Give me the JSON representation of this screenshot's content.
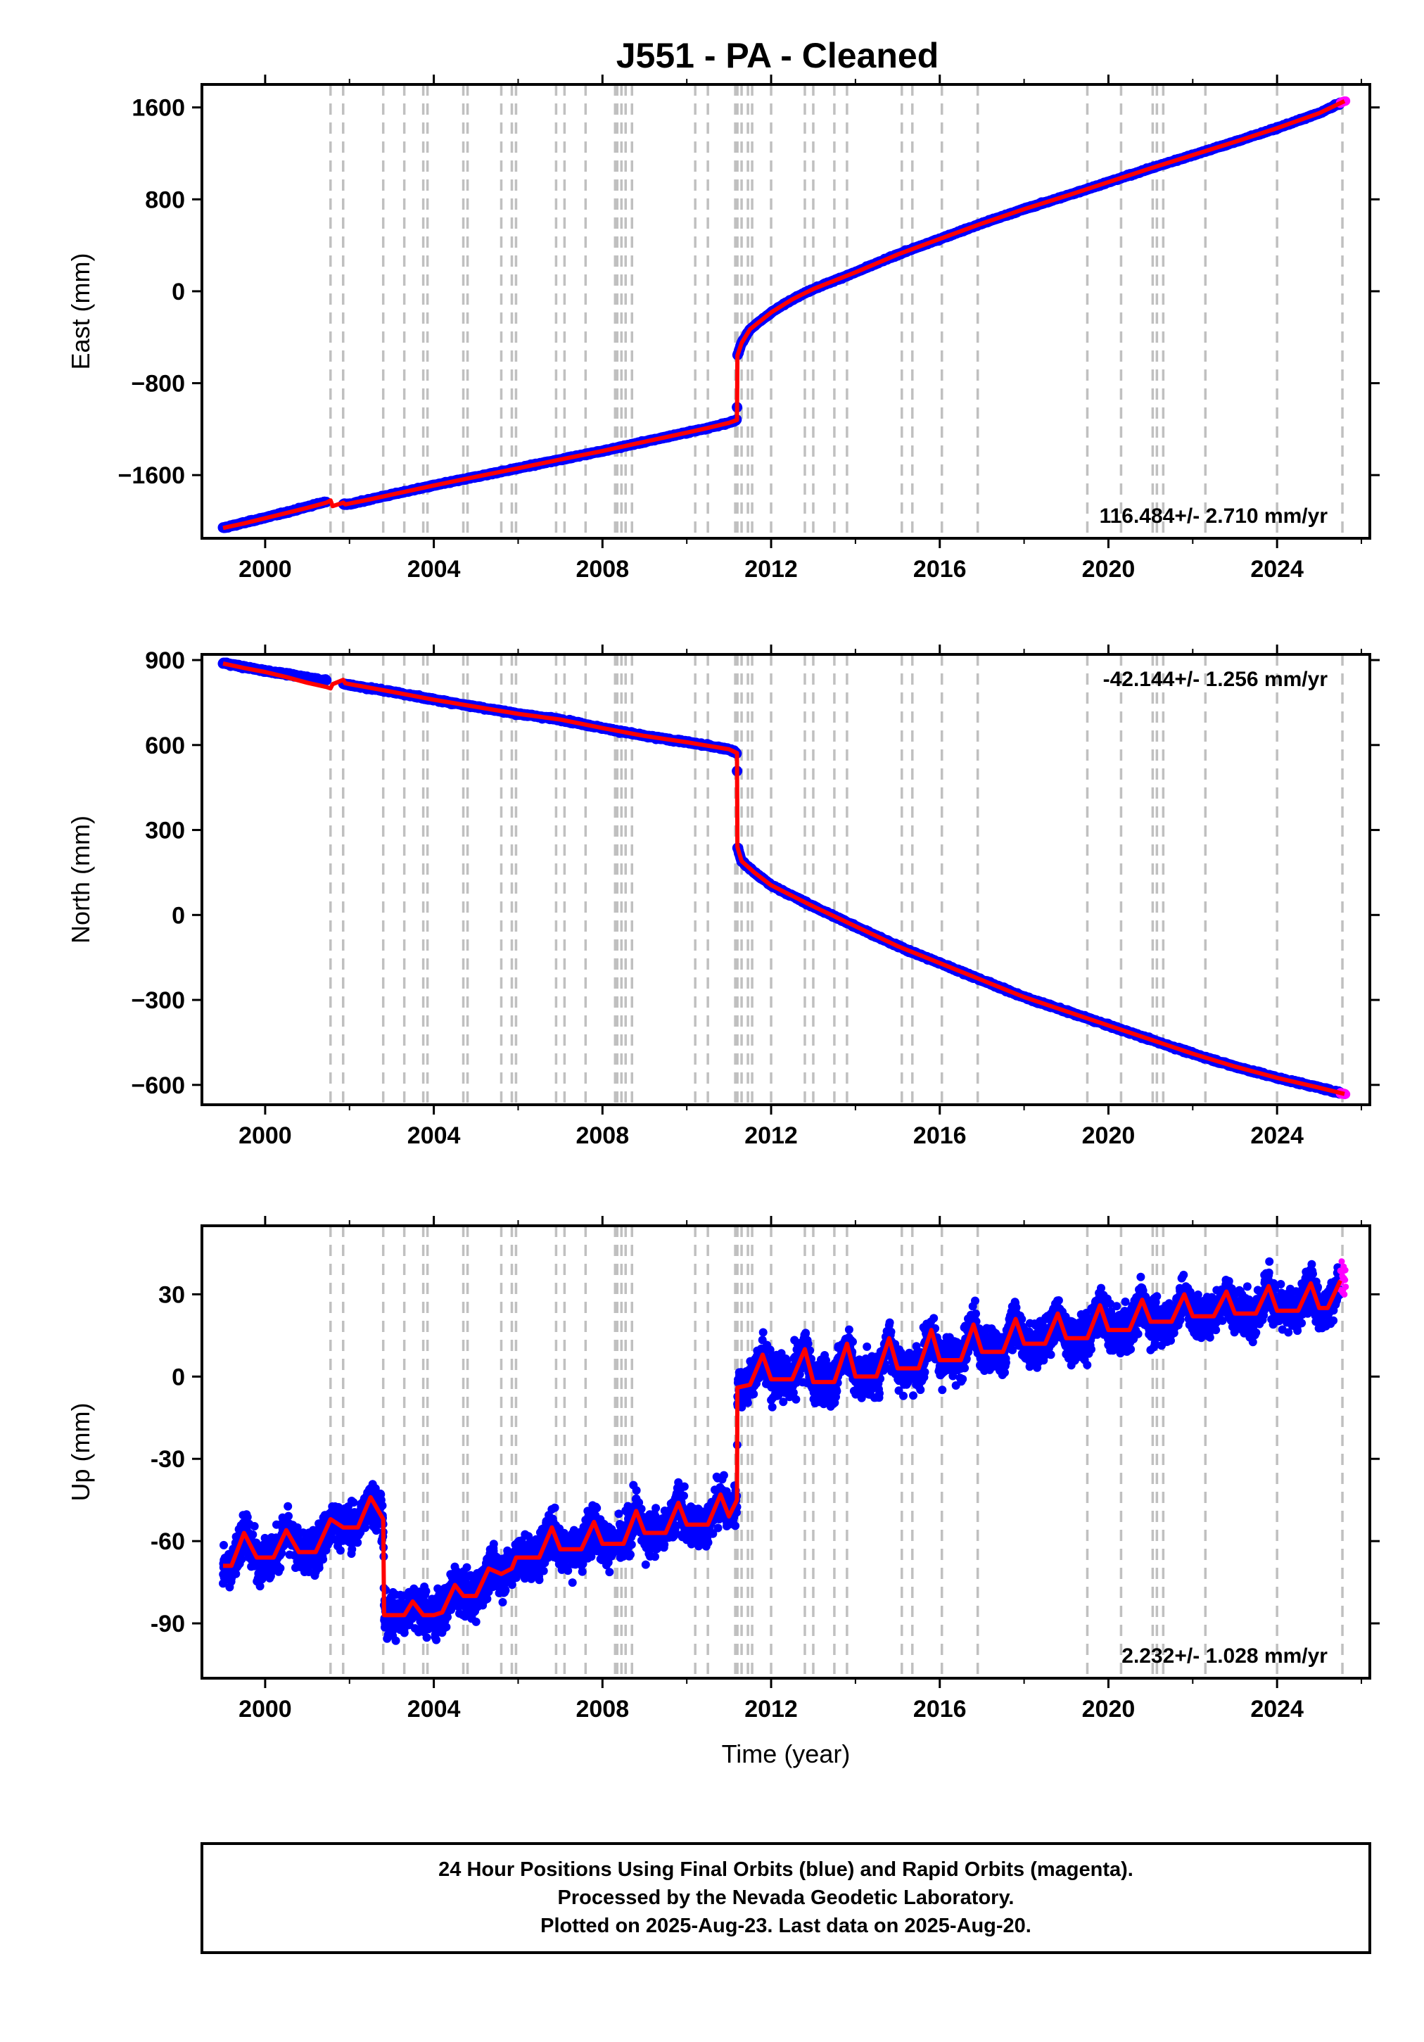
{
  "title": "J551  - PA - Cleaned",
  "footer": {
    "lines": [
      "24 Hour Positions Using Final Orbits (blue) and Rapid Orbits (magenta).",
      "Processed by the Nevada Geodetic Laboratory.",
      "Plotted on 2025-Aug-23. Last data on 2025-Aug-20."
    ]
  },
  "colors": {
    "final_orbits": "#0000ff",
    "rapid_orbits": "#ff00ff",
    "model": "#ff0000",
    "event_lines": "#c0c0c0",
    "frame": "#000000"
  },
  "event_lines": [
    2001.55,
    2001.85,
    2002.8,
    2003.3,
    2003.75,
    2003.85,
    2004.7,
    2004.8,
    2005.6,
    2005.85,
    2005.95,
    2006.9,
    2007.1,
    2007.6,
    2008.3,
    2008.35,
    2008.45,
    2008.55,
    2008.7,
    2010.2,
    2010.5,
    2011.15,
    2011.2,
    2011.3,
    2011.45,
    2011.55,
    2012.0,
    2012.8,
    2013.0,
    2013.5,
    2013.8,
    2015.1,
    2015.35,
    2016.05,
    2016.9,
    2019.5,
    2020.3,
    2021.05,
    2021.15,
    2021.3,
    2022.3,
    2024.0,
    2025.55
  ],
  "chart_data": [
    {
      "type": "scatter",
      "component": "east",
      "ylabel": "East (mm)",
      "xlabel": "",
      "xlim": [
        1998.5,
        2026.2
      ],
      "ylim": [
        -2150,
        1800
      ],
      "xticks": [
        2000,
        2004,
        2008,
        2012,
        2016,
        2020,
        2024
      ],
      "xtick_labels": [
        "2000",
        "2004",
        "2008",
        "2012",
        "2016",
        "2020",
        "2024"
      ],
      "yticks": [
        -1600,
        -800,
        0,
        800,
        1600
      ],
      "ytick_labels": [
        "−1600",
        "−800",
        "0",
        "800",
        "1600"
      ],
      "rate_label": "116.484+/- 2.710 mm/yr",
      "rate_position": "bottom-right",
      "grid": false,
      "series": [
        {
          "role": "final-orbits",
          "x": [
            1999.0,
            1999.5,
            2000.0,
            2000.5,
            2001.0,
            2001.4,
            2002.0,
            2002.5,
            2003.0,
            2004.0,
            2005.0,
            2006.0,
            2007.0,
            2008.0,
            2009.0,
            2010.0,
            2010.5,
            2011.0,
            2011.19,
            2011.2,
            2011.3,
            2011.5,
            2012.0,
            2012.5,
            2013.0,
            2014.0,
            2015.0,
            2016.0,
            2017.0,
            2018.0,
            2019.0,
            2020.0,
            2021.0,
            2022.0,
            2023.0,
            2024.0,
            2025.0,
            2025.6
          ],
          "y": [
            -2060,
            -2015,
            -1970,
            -1925,
            -1875,
            -1835,
            -1855,
            -1810,
            -1770,
            -1690,
            -1615,
            -1540,
            -1465,
            -1390,
            -1310,
            -1230,
            -1190,
            -1145,
            -1120,
            -560,
            -450,
            -330,
            -185,
            -70,
            20,
            165,
            320,
            455,
            590,
            715,
            830,
            950,
            1070,
            1185,
            1300,
            1420,
            1550,
            1655
          ]
        },
        {
          "role": "model",
          "x": [
            1999.0,
            1999.5,
            2000.0,
            2000.5,
            2001.0,
            2001.45,
            2001.55,
            2001.6,
            2001.85,
            2001.9,
            2002.5,
            2003.0,
            2004.0,
            2005.0,
            2006.0,
            2007.0,
            2008.0,
            2009.0,
            2010.0,
            2010.5,
            2011.0,
            2011.19,
            2011.2,
            2011.3,
            2011.5,
            2012.0,
            2012.5,
            2013.0,
            2014.0,
            2015.0,
            2016.0,
            2017.0,
            2018.0,
            2019.0,
            2020.0,
            2021.0,
            2022.0,
            2023.0,
            2024.0,
            2025.0,
            2025.6
          ],
          "y": [
            -2060,
            -2020,
            -1975,
            -1930,
            -1885,
            -1840,
            -1820,
            -1870,
            -1840,
            -1855,
            -1810,
            -1770,
            -1690,
            -1615,
            -1540,
            -1465,
            -1390,
            -1310,
            -1230,
            -1190,
            -1145,
            -1120,
            -560,
            -450,
            -330,
            -185,
            -70,
            20,
            165,
            320,
            455,
            590,
            715,
            830,
            950,
            1070,
            1185,
            1300,
            1420,
            1550,
            1655
          ]
        }
      ]
    },
    {
      "type": "scatter",
      "component": "north",
      "ylabel": "North (mm)",
      "xlabel": "",
      "xlim": [
        1998.5,
        2026.2
      ],
      "ylim": [
        -670,
        920
      ],
      "xticks": [
        2000,
        2004,
        2008,
        2012,
        2016,
        2020,
        2024
      ],
      "xtick_labels": [
        "2000",
        "2004",
        "2008",
        "2012",
        "2016",
        "2020",
        "2024"
      ],
      "yticks": [
        -600,
        -300,
        0,
        300,
        600,
        900
      ],
      "ytick_labels": [
        "−600",
        "−300",
        "0",
        "300",
        "600",
        "900"
      ],
      "rate_label": "-42.144+/- 1.256 mm/yr",
      "rate_position": "top-right",
      "grid": false,
      "series": [
        {
          "role": "final-orbits",
          "x": [
            1999.0,
            1999.5,
            2000.0,
            2000.5,
            2001.0,
            2001.4,
            2002.0,
            2003.0,
            2004.0,
            2005.0,
            2006.0,
            2007.0,
            2008.0,
            2009.0,
            2010.0,
            2011.0,
            2011.19,
            2011.2,
            2011.3,
            2011.6,
            2012.0,
            2013.0,
            2014.0,
            2015.0,
            2016.0,
            2017.0,
            2018.0,
            2019.0,
            2020.0,
            2021.0,
            2022.0,
            2023.0,
            2024.0,
            2025.0,
            2025.6
          ],
          "y": [
            890,
            875,
            862,
            850,
            838,
            828,
            812,
            788,
            760,
            735,
            710,
            690,
            660,
            632,
            610,
            585,
            572,
            240,
            190,
            150,
            105,
            30,
            -40,
            -110,
            -170,
            -230,
            -290,
            -340,
            -390,
            -440,
            -490,
            -535,
            -575,
            -610,
            -632
          ]
        },
        {
          "role": "model",
          "x": [
            1999.0,
            1999.5,
            2000.0,
            2000.5,
            2001.0,
            2001.45,
            2001.55,
            2001.6,
            2001.85,
            2001.9,
            2003.0,
            2004.0,
            2005.0,
            2006.0,
            2007.0,
            2008.0,
            2009.0,
            2010.0,
            2011.0,
            2011.19,
            2011.2,
            2011.3,
            2011.6,
            2012.0,
            2013.0,
            2014.0,
            2015.0,
            2016.0,
            2017.0,
            2018.0,
            2019.0,
            2020.0,
            2021.0,
            2022.0,
            2023.0,
            2024.0,
            2025.0,
            2025.6
          ],
          "y": [
            888,
            872,
            858,
            840,
            820,
            805,
            800,
            815,
            830,
            818,
            788,
            760,
            735,
            710,
            690,
            660,
            632,
            610,
            585,
            572,
            240,
            190,
            150,
            105,
            30,
            -40,
            -110,
            -170,
            -230,
            -290,
            -340,
            -390,
            -440,
            -490,
            -535,
            -575,
            -610,
            -632
          ]
        }
      ]
    },
    {
      "type": "scatter",
      "component": "up",
      "ylabel": "Up (mm)",
      "xlabel": "Time (year)",
      "xlim": [
        1998.5,
        2026.2
      ],
      "ylim": [
        -110,
        55
      ],
      "xticks": [
        2000,
        2004,
        2008,
        2012,
        2016,
        2020,
        2024
      ],
      "xtick_labels": [
        "2000",
        "2004",
        "2008",
        "2012",
        "2016",
        "2020",
        "2024"
      ],
      "yticks": [
        -90,
        -60,
        -30,
        0,
        30
      ],
      "ytick_labels": [
        "-90",
        "-60",
        "-30",
        "0",
        "30"
      ],
      "rate_label": "2.232+/- 1.028 mm/yr",
      "rate_position": "bottom-right",
      "grid": false,
      "series": [
        {
          "role": "model",
          "x": [
            1999.0,
            1999.2,
            1999.5,
            1999.8,
            2000.0,
            2000.2,
            2000.5,
            2000.8,
            2001.0,
            2001.2,
            2001.55,
            2001.85,
            2002.2,
            2002.5,
            2002.8,
            2002.82,
            2003.0,
            2003.3,
            2003.5,
            2003.75,
            2004.0,
            2004.2,
            2004.5,
            2004.7,
            2004.8,
            2005.0,
            2005.3,
            2005.6,
            2005.85,
            2005.95,
            2006.2,
            2006.5,
            2006.8,
            2007.0,
            2007.2,
            2007.5,
            2007.8,
            2008.0,
            2008.2,
            2008.5,
            2008.8,
            2009.0,
            2009.2,
            2009.5,
            2009.8,
            2010.0,
            2010.2,
            2010.5,
            2010.8,
            2011.0,
            2011.19,
            2011.2,
            2011.5,
            2011.8,
            2012.0,
            2012.2,
            2012.5,
            2012.8,
            2013.0,
            2013.2,
            2013.5,
            2013.8,
            2014.0,
            2014.2,
            2014.5,
            2014.8,
            2015.0,
            2015.2,
            2015.5,
            2015.8,
            2016.0,
            2016.2,
            2016.5,
            2016.8,
            2017.0,
            2017.2,
            2017.5,
            2017.8,
            2018.0,
            2018.2,
            2018.5,
            2018.8,
            2019.0,
            2019.2,
            2019.5,
            2019.8,
            2020.0,
            2020.2,
            2020.5,
            2020.8,
            2021.0,
            2021.2,
            2021.5,
            2021.8,
            2022.0,
            2022.2,
            2022.5,
            2022.8,
            2023.0,
            2023.2,
            2023.5,
            2023.8,
            2024.0,
            2024.2,
            2024.5,
            2024.8,
            2025.0,
            2025.2,
            2025.5
          ],
          "y": [
            -69,
            -69,
            -57,
            -66,
            -66,
            -66,
            -56,
            -64,
            -64,
            -64,
            -52,
            -55,
            -55,
            -44,
            -52,
            -87,
            -87,
            -87,
            -82,
            -87,
            -87,
            -86,
            -76,
            -80,
            -80,
            -80,
            -70,
            -72,
            -70,
            -66,
            -66,
            -66,
            -55,
            -63,
            -63,
            -63,
            -53,
            -61,
            -61,
            -61,
            -49,
            -57,
            -57,
            -57,
            -46,
            -54,
            -54,
            -54,
            -43,
            -51,
            -45,
            -4,
            -3,
            8,
            -1,
            -1,
            -1,
            10,
            -2,
            -2,
            -2,
            12,
            0,
            0,
            0,
            14,
            3,
            3,
            3,
            17,
            6,
            6,
            6,
            19,
            9,
            9,
            9,
            21,
            12,
            12,
            12,
            23,
            14,
            14,
            14,
            26,
            17,
            17,
            17,
            28,
            20,
            20,
            20,
            30,
            22,
            22,
            22,
            31,
            23,
            23,
            23,
            33,
            24,
            24,
            24,
            34,
            25,
            25,
            35
          ]
        }
      ]
    }
  ]
}
